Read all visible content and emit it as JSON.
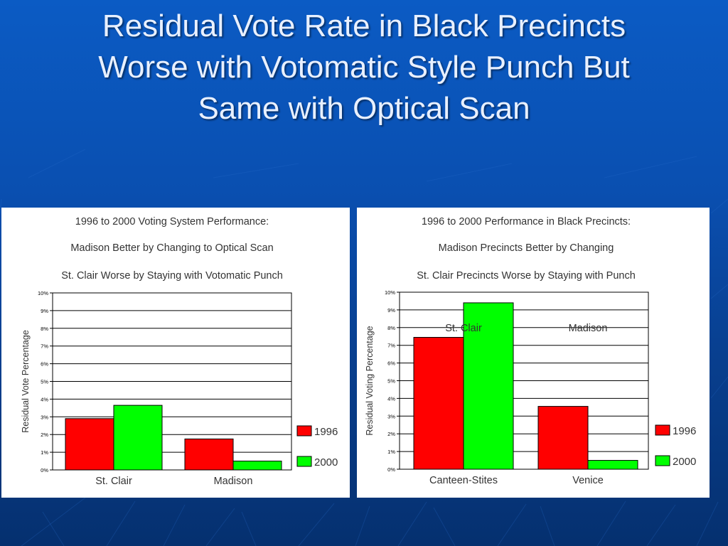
{
  "slide": {
    "title": "Residual Vote Rate in Black Precincts\nWorse with Votomatic Style Punch But\nSame with Optical Scan"
  },
  "colors": {
    "series_1996": "#ff0000",
    "series_2000": "#00ff00",
    "background": "#0a4fb0"
  },
  "chart_data": [
    {
      "type": "bar",
      "title": "1996 to 2000 Voting System Performance:",
      "subtitle": [
        "Madison Better by Changing to Optical Scan",
        "St. Clair Worse by Staying with Votomatic Punch"
      ],
      "categories": [
        "St. Clair",
        "Madison"
      ],
      "series": [
        {
          "name": "1996",
          "values": [
            2.9,
            1.75
          ]
        },
        {
          "name": "2000",
          "values": [
            3.65,
            0.5
          ]
        }
      ],
      "xlabel": "",
      "ylabel": "Residual Vote Percentage",
      "ylim": [
        0,
        10
      ],
      "yticks": [
        "0%",
        "1%",
        "2%",
        "3%",
        "4%",
        "5%",
        "6%",
        "7%",
        "8%",
        "9%",
        "10%"
      ],
      "grid": true,
      "legend": "right",
      "annotations": []
    },
    {
      "type": "bar",
      "title": "1996 to 2000 Performance in Black Precincts:",
      "subtitle": [
        "Madison Precincts Better by Changing",
        "St. Clair Precincts Worse by Staying with Punch"
      ],
      "categories": [
        "Canteen-Stites",
        "Venice"
      ],
      "series": [
        {
          "name": "1996",
          "values": [
            7.45,
            3.55
          ]
        },
        {
          "name": "2000",
          "values": [
            9.4,
            0.5
          ]
        }
      ],
      "xlabel": "",
      "ylabel": "Residual Voting Percentage",
      "ylim": [
        0,
        10
      ],
      "yticks": [
        "0%",
        "1%",
        "2%",
        "3%",
        "4%",
        "5%",
        "6%",
        "7%",
        "8%",
        "9%",
        "10%"
      ],
      "grid": true,
      "legend": "right",
      "annotations": [
        "St. Clair",
        "Madison"
      ]
    }
  ]
}
